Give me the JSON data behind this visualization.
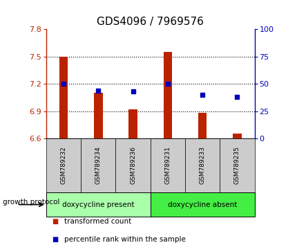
{
  "title": "GDS4096 / 7969576",
  "samples": [
    "GSM789232",
    "GSM789234",
    "GSM789236",
    "GSM789231",
    "GSM789233",
    "GSM789235"
  ],
  "transformed_count": [
    7.5,
    7.1,
    6.92,
    7.55,
    6.88,
    6.65
  ],
  "percentile_rank": [
    50,
    44,
    43,
    50,
    40,
    38
  ],
  "ylim_left": [
    6.6,
    7.8
  ],
  "ylim_right": [
    0,
    100
  ],
  "yticks_left": [
    6.6,
    6.9,
    7.2,
    7.5,
    7.8
  ],
  "yticks_right": [
    0,
    25,
    50,
    75,
    100
  ],
  "bar_baseline": 6.6,
  "bar_color": "#bb2200",
  "dot_color": "#0000bb",
  "protocol_groups": [
    {
      "label": "doxycycline present",
      "indices": [
        0,
        1,
        2
      ],
      "color": "#aaffaa"
    },
    {
      "label": "doxycycline absent",
      "indices": [
        3,
        4,
        5
      ],
      "color": "#44ee44"
    }
  ],
  "protocol_label": "growth protocol",
  "legend_items": [
    {
      "label": "transformed count",
      "color": "#bb2200"
    },
    {
      "label": "percentile rank within the sample",
      "color": "#0000bb"
    }
  ],
  "title_fontsize": 11,
  "tick_fontsize": 8,
  "bar_width": 0.25
}
